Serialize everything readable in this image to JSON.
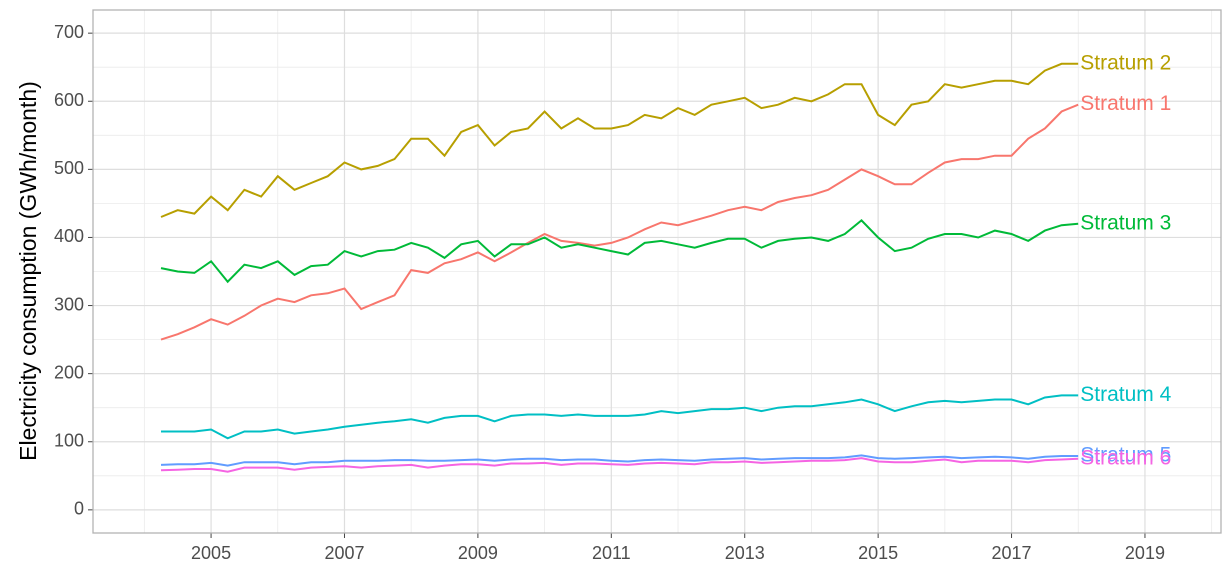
{
  "chart_data": {
    "type": "line",
    "ylabel": "Electricity consumption (GWh/month)",
    "x": [
      2004.25,
      2004.5,
      2004.75,
      2005,
      2005.25,
      2005.5,
      2005.75,
      2006,
      2006.25,
      2006.5,
      2006.75,
      2007,
      2007.25,
      2007.5,
      2007.75,
      2008,
      2008.25,
      2008.5,
      2008.75,
      2009,
      2009.25,
      2009.5,
      2009.75,
      2010,
      2010.25,
      2010.5,
      2010.75,
      2011,
      2011.25,
      2011.5,
      2011.75,
      2012,
      2012.25,
      2012.5,
      2012.75,
      2013,
      2013.25,
      2013.5,
      2013.75,
      2014,
      2014.25,
      2014.5,
      2014.75,
      2015,
      2015.25,
      2015.5,
      2015.75,
      2016,
      2016.25,
      2016.5,
      2016.75,
      2017,
      2017.25,
      2017.5,
      2017.75,
      2018
    ],
    "series": [
      {
        "name": "Stratum 1",
        "color": "#F8766D",
        "values": [
          250,
          258,
          268,
          280,
          272,
          285,
          300,
          310,
          305,
          315,
          318,
          325,
          295,
          305,
          315,
          352,
          348,
          362,
          368,
          378,
          365,
          378,
          392,
          405,
          395,
          392,
          388,
          392,
          400,
          412,
          422,
          418,
          425,
          432,
          440,
          445,
          440,
          452,
          458,
          462,
          470,
          485,
          500,
          490,
          478,
          478,
          495,
          510,
          515,
          515,
          520,
          520,
          545,
          560,
          585,
          595
        ]
      },
      {
        "name": "Stratum 2",
        "color": "#B79F00",
        "values": [
          430,
          440,
          435,
          460,
          440,
          470,
          460,
          490,
          470,
          480,
          490,
          510,
          500,
          505,
          515,
          545,
          545,
          520,
          555,
          565,
          535,
          555,
          560,
          585,
          560,
          575,
          560,
          560,
          565,
          580,
          575,
          590,
          580,
          595,
          600,
          605,
          590,
          595,
          605,
          600,
          610,
          625,
          625,
          580,
          565,
          595,
          600,
          625,
          620,
          625,
          630,
          630,
          625,
          645,
          655,
          655
        ]
      },
      {
        "name": "Stratum 3",
        "color": "#00BA38",
        "values": [
          355,
          350,
          348,
          365,
          335,
          360,
          355,
          365,
          345,
          358,
          360,
          380,
          372,
          380,
          382,
          392,
          385,
          370,
          390,
          395,
          372,
          390,
          390,
          400,
          385,
          390,
          385,
          380,
          375,
          392,
          395,
          390,
          385,
          392,
          398,
          398,
          385,
          395,
          398,
          400,
          395,
          405,
          425,
          400,
          380,
          385,
          398,
          405,
          405,
          400,
          410,
          405,
          395,
          410,
          418,
          420
        ]
      },
      {
        "name": "Stratum 4",
        "color": "#00BFC4",
        "values": [
          115,
          115,
          115,
          118,
          105,
          115,
          115,
          118,
          112,
          115,
          118,
          122,
          125,
          128,
          130,
          133,
          128,
          135,
          138,
          138,
          130,
          138,
          140,
          140,
          138,
          140,
          138,
          138,
          138,
          140,
          145,
          142,
          145,
          148,
          148,
          150,
          145,
          150,
          152,
          152,
          155,
          158,
          162,
          155,
          145,
          152,
          158,
          160,
          158,
          160,
          162,
          162,
          155,
          165,
          168,
          168
        ]
      },
      {
        "name": "Stratum 5",
        "color": "#619CFF",
        "values": [
          66,
          67,
          67,
          69,
          65,
          70,
          70,
          70,
          67,
          70,
          70,
          72,
          72,
          72,
          73,
          73,
          72,
          72,
          73,
          74,
          72,
          74,
          75,
          75,
          73,
          74,
          74,
          72,
          71,
          73,
          74,
          73,
          72,
          74,
          75,
          76,
          74,
          75,
          76,
          76,
          76,
          77,
          80,
          76,
          75,
          76,
          77,
          78,
          76,
          77,
          78,
          77,
          75,
          78,
          79,
          79
        ]
      },
      {
        "name": "Stratum 6",
        "color": "#F564E3",
        "values": [
          58,
          59,
          60,
          60,
          56,
          62,
          62,
          62,
          59,
          62,
          63,
          64,
          62,
          64,
          65,
          66,
          62,
          65,
          67,
          67,
          65,
          68,
          68,
          69,
          66,
          68,
          68,
          67,
          66,
          68,
          69,
          68,
          67,
          70,
          70,
          71,
          69,
          70,
          71,
          72,
          72,
          73,
          76,
          71,
          70,
          70,
          72,
          74,
          70,
          72,
          72,
          72,
          70,
          73,
          74,
          75
        ]
      }
    ],
    "xlim": [
      2003.23,
      2020.14
    ],
    "xticks": [
      2005,
      2007,
      2009,
      2011,
      2013,
      2015,
      2017,
      2019
    ],
    "xminor": [
      2004,
      2006,
      2008,
      2010,
      2012,
      2014,
      2016,
      2018,
      2020
    ],
    "ylim": [
      -34,
      734
    ],
    "yticks": [
      0,
      100,
      200,
      300,
      400,
      500,
      600,
      700
    ],
    "yminor": [
      50,
      150,
      250,
      350,
      450,
      550,
      650
    ],
    "grid": true
  }
}
